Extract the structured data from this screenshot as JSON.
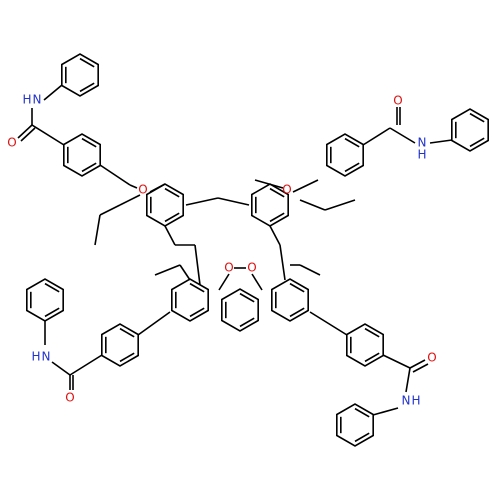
{
  "labels": [
    "H",
    "N",
    "O",
    "O",
    "N",
    "H",
    "H",
    "N",
    "O",
    "O",
    "N",
    "H",
    "O",
    "O",
    "O",
    "O"
  ]
}
